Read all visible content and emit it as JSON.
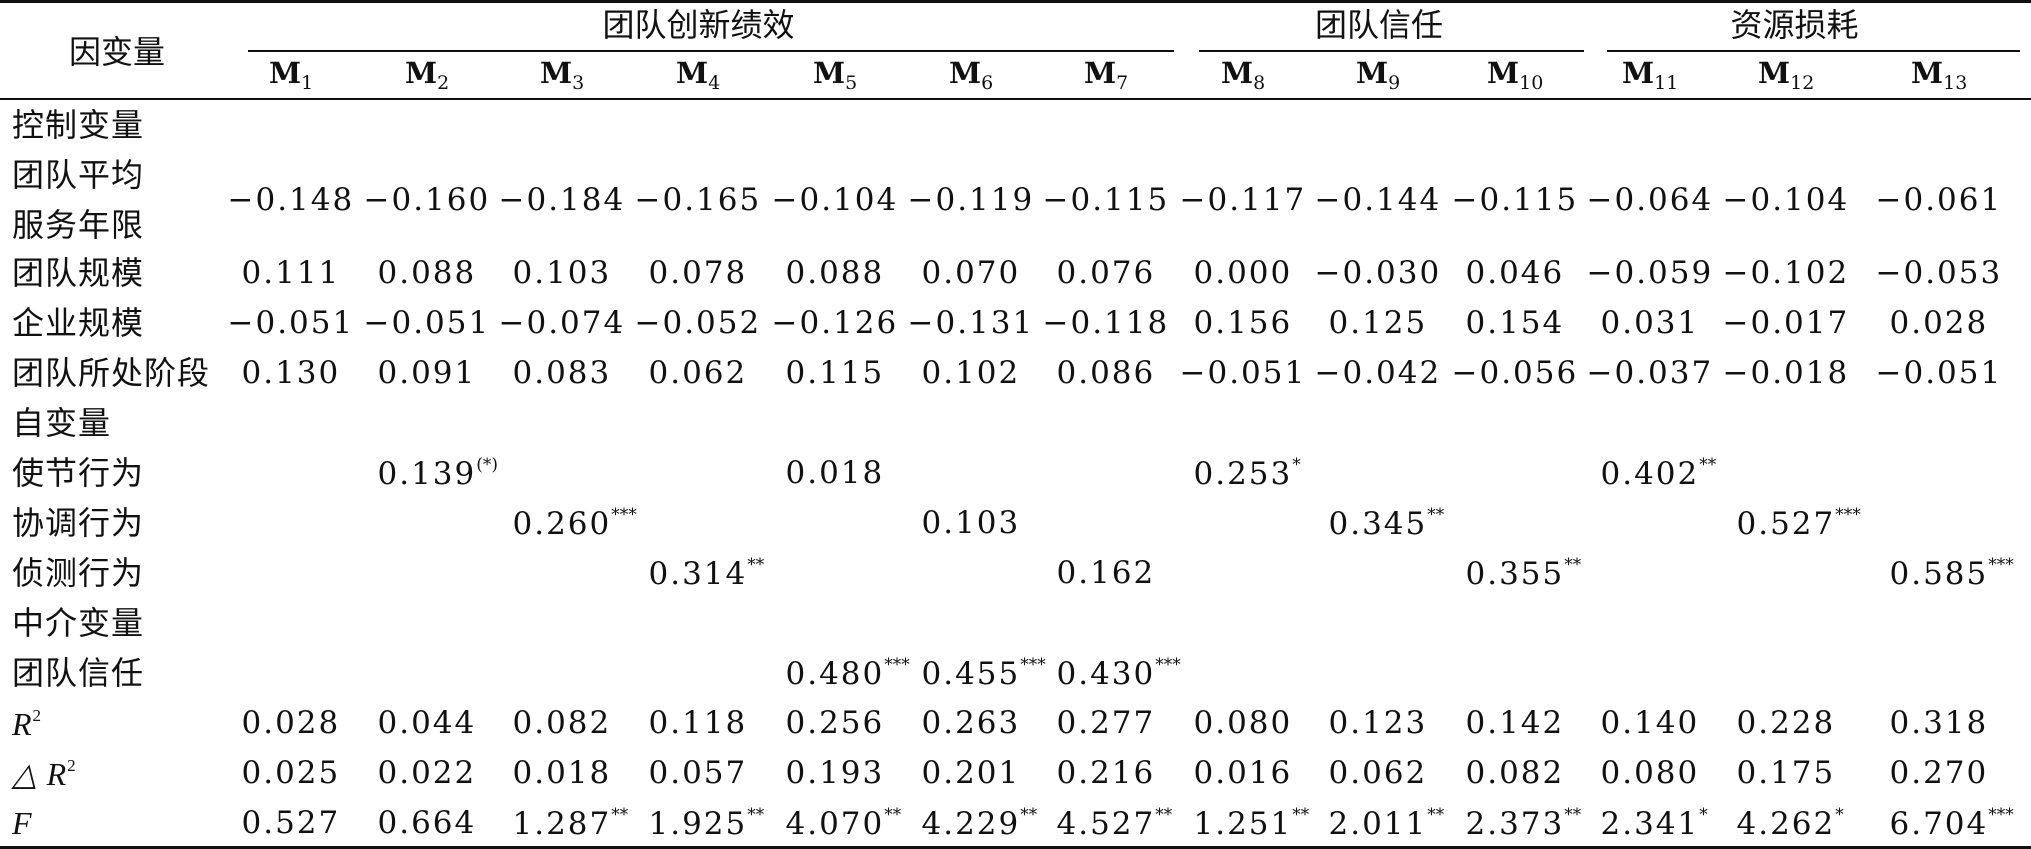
{
  "table": {
    "corner_label": "因变量",
    "groups": [
      {
        "label": "团队创新绩效"
      },
      {
        "label": "团队信任"
      },
      {
        "label": "资源损耗"
      }
    ],
    "models": [
      {
        "base": "M",
        "sub": "1"
      },
      {
        "base": "M",
        "sub": "2"
      },
      {
        "base": "M",
        "sub": "3"
      },
      {
        "base": "M",
        "sub": "4"
      },
      {
        "base": "M",
        "sub": "5"
      },
      {
        "base": "M",
        "sub": "6"
      },
      {
        "base": "M",
        "sub": "7"
      },
      {
        "base": "M",
        "sub": "8"
      },
      {
        "base": "M",
        "sub": "9"
      },
      {
        "base": "M",
        "sub": "10"
      },
      {
        "base": "M",
        "sub": "11"
      },
      {
        "base": "M",
        "sub": "12"
      },
      {
        "base": "M",
        "sub": "13"
      }
    ],
    "rows": [
      {
        "label": "控制变量",
        "section": true
      },
      {
        "label": "团队平均",
        "label2": "服务年限",
        "tall": true,
        "cells": [
          {
            "v": "−0.148"
          },
          {
            "v": "−0.160"
          },
          {
            "v": "−0.184"
          },
          {
            "v": "−0.165"
          },
          {
            "v": "−0.104"
          },
          {
            "v": "−0.119"
          },
          {
            "v": "−0.115"
          },
          {
            "v": "−0.117"
          },
          {
            "v": "−0.144"
          },
          {
            "v": "−0.115"
          },
          {
            "v": "−0.064"
          },
          {
            "v": "−0.104"
          },
          {
            "v": "−0.061"
          }
        ]
      },
      {
        "label": "团队规模",
        "cells": [
          {
            "v": "0.111"
          },
          {
            "v": "0.088"
          },
          {
            "v": "0.103"
          },
          {
            "v": "0.078"
          },
          {
            "v": "0.088"
          },
          {
            "v": "0.070"
          },
          {
            "v": "0.076"
          },
          {
            "v": "0.000"
          },
          {
            "v": "−0.030"
          },
          {
            "v": "0.046"
          },
          {
            "v": "−0.059"
          },
          {
            "v": "−0.102"
          },
          {
            "v": "−0.053"
          }
        ]
      },
      {
        "label": "企业规模",
        "cells": [
          {
            "v": "−0.051"
          },
          {
            "v": "−0.051"
          },
          {
            "v": "−0.074"
          },
          {
            "v": "−0.052"
          },
          {
            "v": "−0.126"
          },
          {
            "v": "−0.131"
          },
          {
            "v": "−0.118"
          },
          {
            "v": "0.156"
          },
          {
            "v": "0.125"
          },
          {
            "v": "0.154"
          },
          {
            "v": "0.031"
          },
          {
            "v": "−0.017"
          },
          {
            "v": "0.028"
          }
        ]
      },
      {
        "label": "团队所处阶段",
        "cells": [
          {
            "v": "0.130"
          },
          {
            "v": "0.091"
          },
          {
            "v": "0.083"
          },
          {
            "v": "0.062"
          },
          {
            "v": "0.115"
          },
          {
            "v": "0.102"
          },
          {
            "v": "0.086"
          },
          {
            "v": "−0.051"
          },
          {
            "v": "−0.042"
          },
          {
            "v": "−0.056"
          },
          {
            "v": "−0.037"
          },
          {
            "v": "−0.018"
          },
          {
            "v": "−0.051"
          }
        ]
      },
      {
        "label": "自变量",
        "section": true
      },
      {
        "label": "使节行为",
        "cells": [
          {
            "v": ""
          },
          {
            "v": "0.139",
            "s": "(*)"
          },
          {
            "v": ""
          },
          {
            "v": ""
          },
          {
            "v": "0.018"
          },
          {
            "v": ""
          },
          {
            "v": ""
          },
          {
            "v": "0.253",
            "s": "*"
          },
          {
            "v": ""
          },
          {
            "v": ""
          },
          {
            "v": "0.402",
            "s": "**"
          },
          {
            "v": ""
          },
          {
            "v": ""
          }
        ]
      },
      {
        "label": "协调行为",
        "cells": [
          {
            "v": ""
          },
          {
            "v": ""
          },
          {
            "v": "0.260",
            "s": "***"
          },
          {
            "v": ""
          },
          {
            "v": ""
          },
          {
            "v": "0.103"
          },
          {
            "v": ""
          },
          {
            "v": ""
          },
          {
            "v": "0.345",
            "s": "**"
          },
          {
            "v": ""
          },
          {
            "v": ""
          },
          {
            "v": "0.527",
            "s": "***"
          },
          {
            "v": ""
          }
        ]
      },
      {
        "label": "侦测行为",
        "cells": [
          {
            "v": ""
          },
          {
            "v": ""
          },
          {
            "v": ""
          },
          {
            "v": "0.314",
            "s": "**"
          },
          {
            "v": ""
          },
          {
            "v": ""
          },
          {
            "v": "0.162"
          },
          {
            "v": ""
          },
          {
            "v": ""
          },
          {
            "v": "0.355",
            "s": "**"
          },
          {
            "v": ""
          },
          {
            "v": ""
          },
          {
            "v": "0.585",
            "s": "***"
          }
        ]
      },
      {
        "label": "中介变量",
        "section": true
      },
      {
        "label": "团队信任",
        "cells": [
          {
            "v": ""
          },
          {
            "v": ""
          },
          {
            "v": ""
          },
          {
            "v": ""
          },
          {
            "v": "0.480",
            "s": "***"
          },
          {
            "v": "0.455",
            "s": "***"
          },
          {
            "v": "0.430",
            "s": "***"
          },
          {
            "v": ""
          },
          {
            "v": ""
          },
          {
            "v": ""
          },
          {
            "v": ""
          },
          {
            "v": ""
          },
          {
            "v": ""
          }
        ]
      },
      {
        "label": "R",
        "label_sup": "2",
        "italic": true,
        "cells": [
          {
            "v": "0.028"
          },
          {
            "v": "0.044"
          },
          {
            "v": "0.082"
          },
          {
            "v": "0.118"
          },
          {
            "v": "0.256"
          },
          {
            "v": "0.263"
          },
          {
            "v": "0.277"
          },
          {
            "v": "0.080"
          },
          {
            "v": "0.123"
          },
          {
            "v": "0.142"
          },
          {
            "v": "0.140"
          },
          {
            "v": "0.228"
          },
          {
            "v": "0.318"
          }
        ]
      },
      {
        "label": "△ R",
        "label_sup": "2",
        "italic": true,
        "cells": [
          {
            "v": "0.025"
          },
          {
            "v": "0.022"
          },
          {
            "v": "0.018"
          },
          {
            "v": "0.057"
          },
          {
            "v": "0.193"
          },
          {
            "v": "0.201"
          },
          {
            "v": "0.216"
          },
          {
            "v": "0.016"
          },
          {
            "v": "0.062"
          },
          {
            "v": "0.082"
          },
          {
            "v": "0.080"
          },
          {
            "v": "0.175"
          },
          {
            "v": "0.270"
          }
        ]
      },
      {
        "label": "F",
        "italic": true,
        "cells": [
          {
            "v": "0.527"
          },
          {
            "v": "0.664"
          },
          {
            "v": "1.287",
            "s": "**"
          },
          {
            "v": "1.925",
            "s": "**"
          },
          {
            "v": "4.070",
            "s": "**"
          },
          {
            "v": "4.229",
            "s": "**"
          },
          {
            "v": "4.527",
            "s": "**"
          },
          {
            "v": "1.251",
            "s": "**"
          },
          {
            "v": "2.011",
            "s": "**"
          },
          {
            "v": "2.373",
            "s": "**"
          },
          {
            "v": "2.341",
            "s": "*"
          },
          {
            "v": "4.262",
            "s": "*"
          },
          {
            "v": "6.704",
            "s": "***"
          }
        ]
      }
    ]
  }
}
